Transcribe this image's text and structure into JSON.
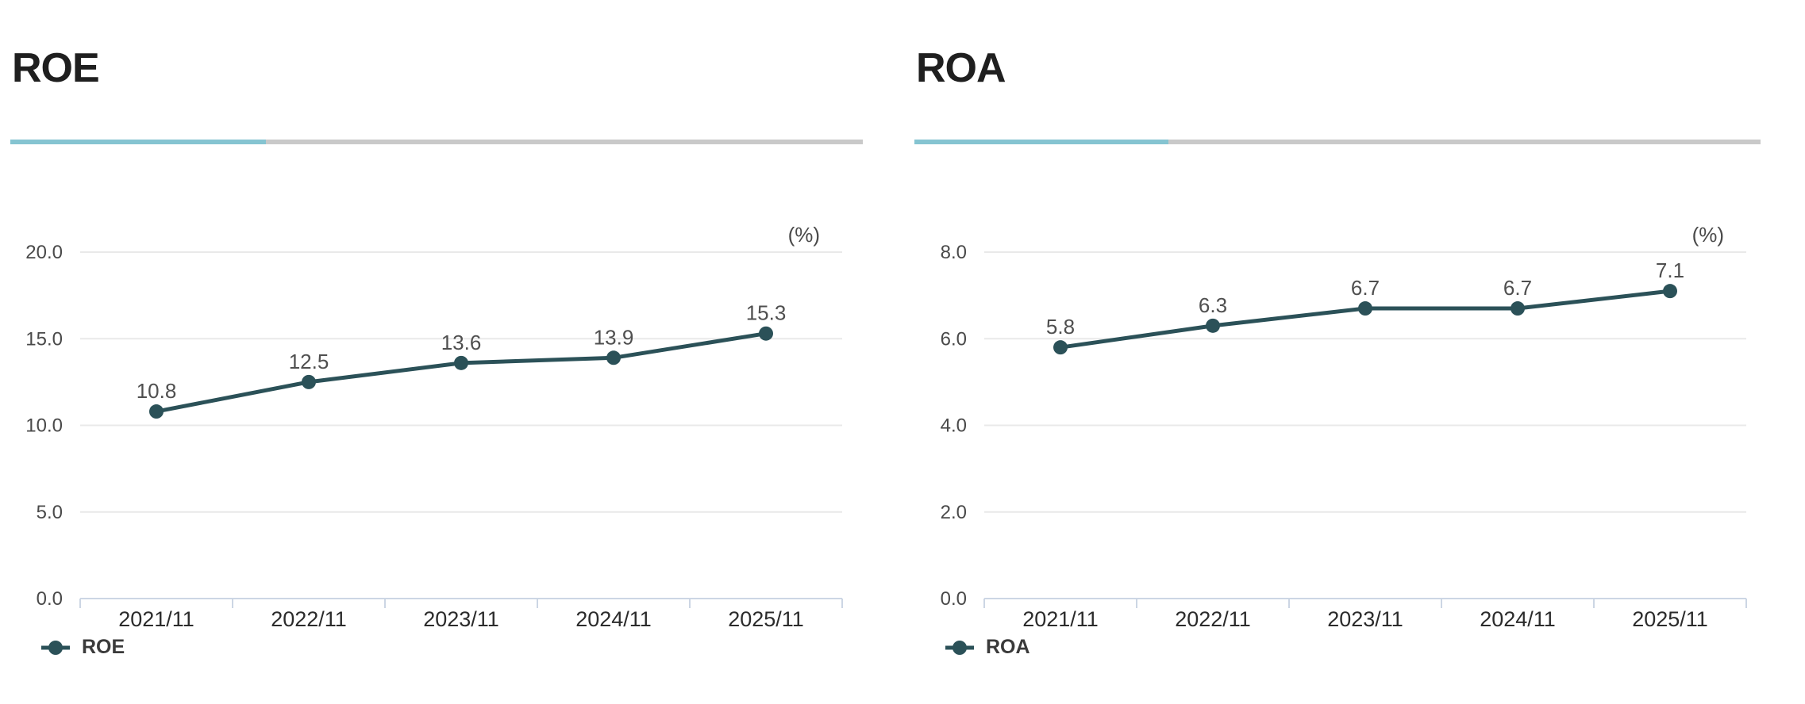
{
  "page": {
    "background": "#ffffff"
  },
  "colors": {
    "title_text": "#1f1f1f",
    "accent_teal": "#85c4d1",
    "divider_gray": "#c9c9c9",
    "series_line": "#2b5158",
    "gridline": "#e9e9e9",
    "axis_line": "#ccd6e4",
    "y_tick_label": "#4a4a4a",
    "x_tick_label": "#2b2b2b",
    "data_label": "#4f4f4f",
    "legend_text": "#3a3a3a",
    "unit_label": "#4a4a4a"
  },
  "chart_data": [
    {
      "type": "line",
      "title": "ROE",
      "legend_label": "ROE",
      "unit_label": "(%)",
      "categories": [
        "2021/11",
        "2022/11",
        "2023/11",
        "2024/11",
        "2025/11"
      ],
      "values": [
        10.8,
        12.5,
        13.6,
        13.9,
        15.3
      ],
      "data_labels": [
        "10.8",
        "12.5",
        "13.6",
        "13.9",
        "15.3"
      ],
      "ylim": [
        0,
        20
      ],
      "y_step": 5,
      "y_tick_labels": [
        "0.0",
        "5.0",
        "10.0",
        "15.0",
        "20.0"
      ],
      "grid": true,
      "legend_position": "bottom-left"
    },
    {
      "type": "line",
      "title": "ROA",
      "legend_label": "ROA",
      "unit_label": "(%)",
      "categories": [
        "2021/11",
        "2022/11",
        "2023/11",
        "2024/11",
        "2025/11"
      ],
      "values": [
        5.8,
        6.3,
        6.7,
        6.7,
        7.1
      ],
      "data_labels": [
        "5.8",
        "6.3",
        "6.7",
        "6.7",
        "7.1"
      ],
      "ylim": [
        0,
        8
      ],
      "y_step": 2,
      "y_tick_labels": [
        "0.0",
        "2.0",
        "4.0",
        "6.0",
        "8.0"
      ],
      "grid": true,
      "legend_position": "bottom-left"
    }
  ]
}
